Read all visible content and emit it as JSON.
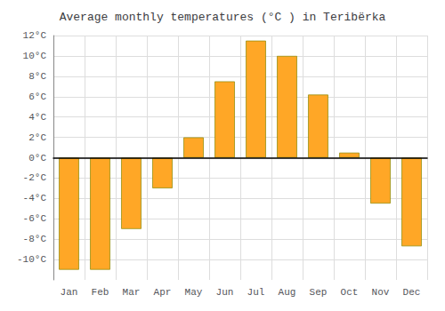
{
  "chart_data": {
    "type": "bar",
    "title": "Average monthly temperatures (°C ) in Teribërka",
    "categories": [
      "Jan",
      "Feb",
      "Mar",
      "Apr",
      "May",
      "Jun",
      "Jul",
      "Aug",
      "Sep",
      "Oct",
      "Nov",
      "Dec"
    ],
    "values": [
      -11,
      -11,
      -7,
      -3,
      2,
      7.5,
      11.5,
      10,
      6.2,
      0.5,
      -4.5,
      -8.7
    ],
    "color": "#FFA726",
    "ylim": [
      -12,
      12
    ],
    "yticks": [
      {
        "value": -10,
        "label": "-10°C"
      },
      {
        "value": -8,
        "label": "-8°C"
      },
      {
        "value": -6,
        "label": "-6°C"
      },
      {
        "value": -4,
        "label": "-4°C"
      },
      {
        "value": -2,
        "label": "-2°C"
      },
      {
        "value": 0,
        "label": "0°C"
      },
      {
        "value": 2,
        "label": "2°C"
      },
      {
        "value": 4,
        "label": "4°C"
      },
      {
        "value": 6,
        "label": "6°C"
      },
      {
        "value": 8,
        "label": "8°C"
      },
      {
        "value": 10,
        "label": "10°C"
      },
      {
        "value": 12,
        "label": "12°C"
      }
    ],
    "grid": true
  }
}
